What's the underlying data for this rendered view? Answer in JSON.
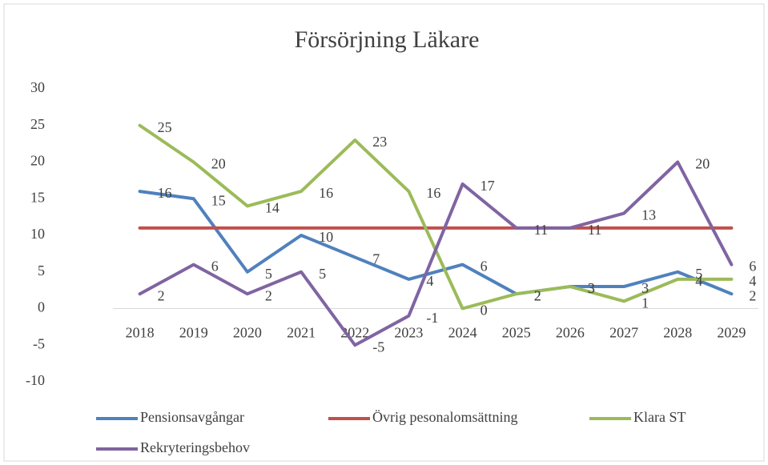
{
  "chart_data": {
    "type": "line",
    "title": "Försörjning Läkare",
    "categories": [
      "2018",
      "2019",
      "2020",
      "2021",
      "2022",
      "2023",
      "2024",
      "2025",
      "2026",
      "2027",
      "2028",
      "2029"
    ],
    "series": [
      {
        "name": "Pensionsavgångar",
        "color": "#4f81bd",
        "show_labels": true,
        "values": [
          16,
          15,
          5,
          10,
          7,
          4,
          6,
          2,
          3,
          3,
          5,
          2
        ]
      },
      {
        "name": "Övrig pesonalomsättning",
        "color": "#c0504d",
        "show_labels": false,
        "values": [
          11,
          11,
          11,
          11,
          11,
          11,
          11,
          11,
          11,
          11,
          11,
          11
        ]
      },
      {
        "name": "Klara ST",
        "color": "#9bbb59",
        "show_labels": true,
        "values": [
          25,
          20,
          14,
          16,
          23,
          16,
          0,
          2,
          3,
          1,
          4,
          4
        ]
      },
      {
        "name": "Rekryteringsbehov",
        "color": "#8064a2",
        "show_labels": true,
        "values": [
          2,
          6,
          2,
          5,
          -5,
          -1,
          17,
          11,
          11,
          13,
          20,
          6
        ]
      }
    ],
    "ylim": [
      -10,
      30
    ],
    "yticks": [
      -10,
      -5,
      0,
      5,
      10,
      15,
      20,
      25,
      30
    ],
    "grid": false
  }
}
